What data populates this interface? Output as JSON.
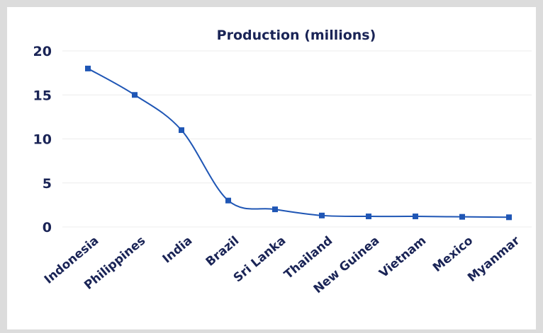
{
  "chart_data": {
    "type": "line",
    "title": "Production (millions)",
    "xlabel": "",
    "ylabel": "",
    "categories": [
      "Indonesia",
      "Philippines",
      "India",
      "Brazil",
      "Sri Lanka",
      "Thailand",
      "New Guinea",
      "Vietnam",
      "Mexico",
      "Myanmar"
    ],
    "series": [
      {
        "values": [
          18,
          15,
          11,
          3,
          2,
          1.3,
          1.2,
          1.2,
          1.15,
          1.1
        ]
      }
    ],
    "ylim": [
      0,
      20
    ],
    "yticks": [
      0,
      5,
      10,
      15,
      20
    ],
    "grid": true,
    "legend": "none",
    "line_color": "#1f56b5",
    "marker": "square"
  }
}
